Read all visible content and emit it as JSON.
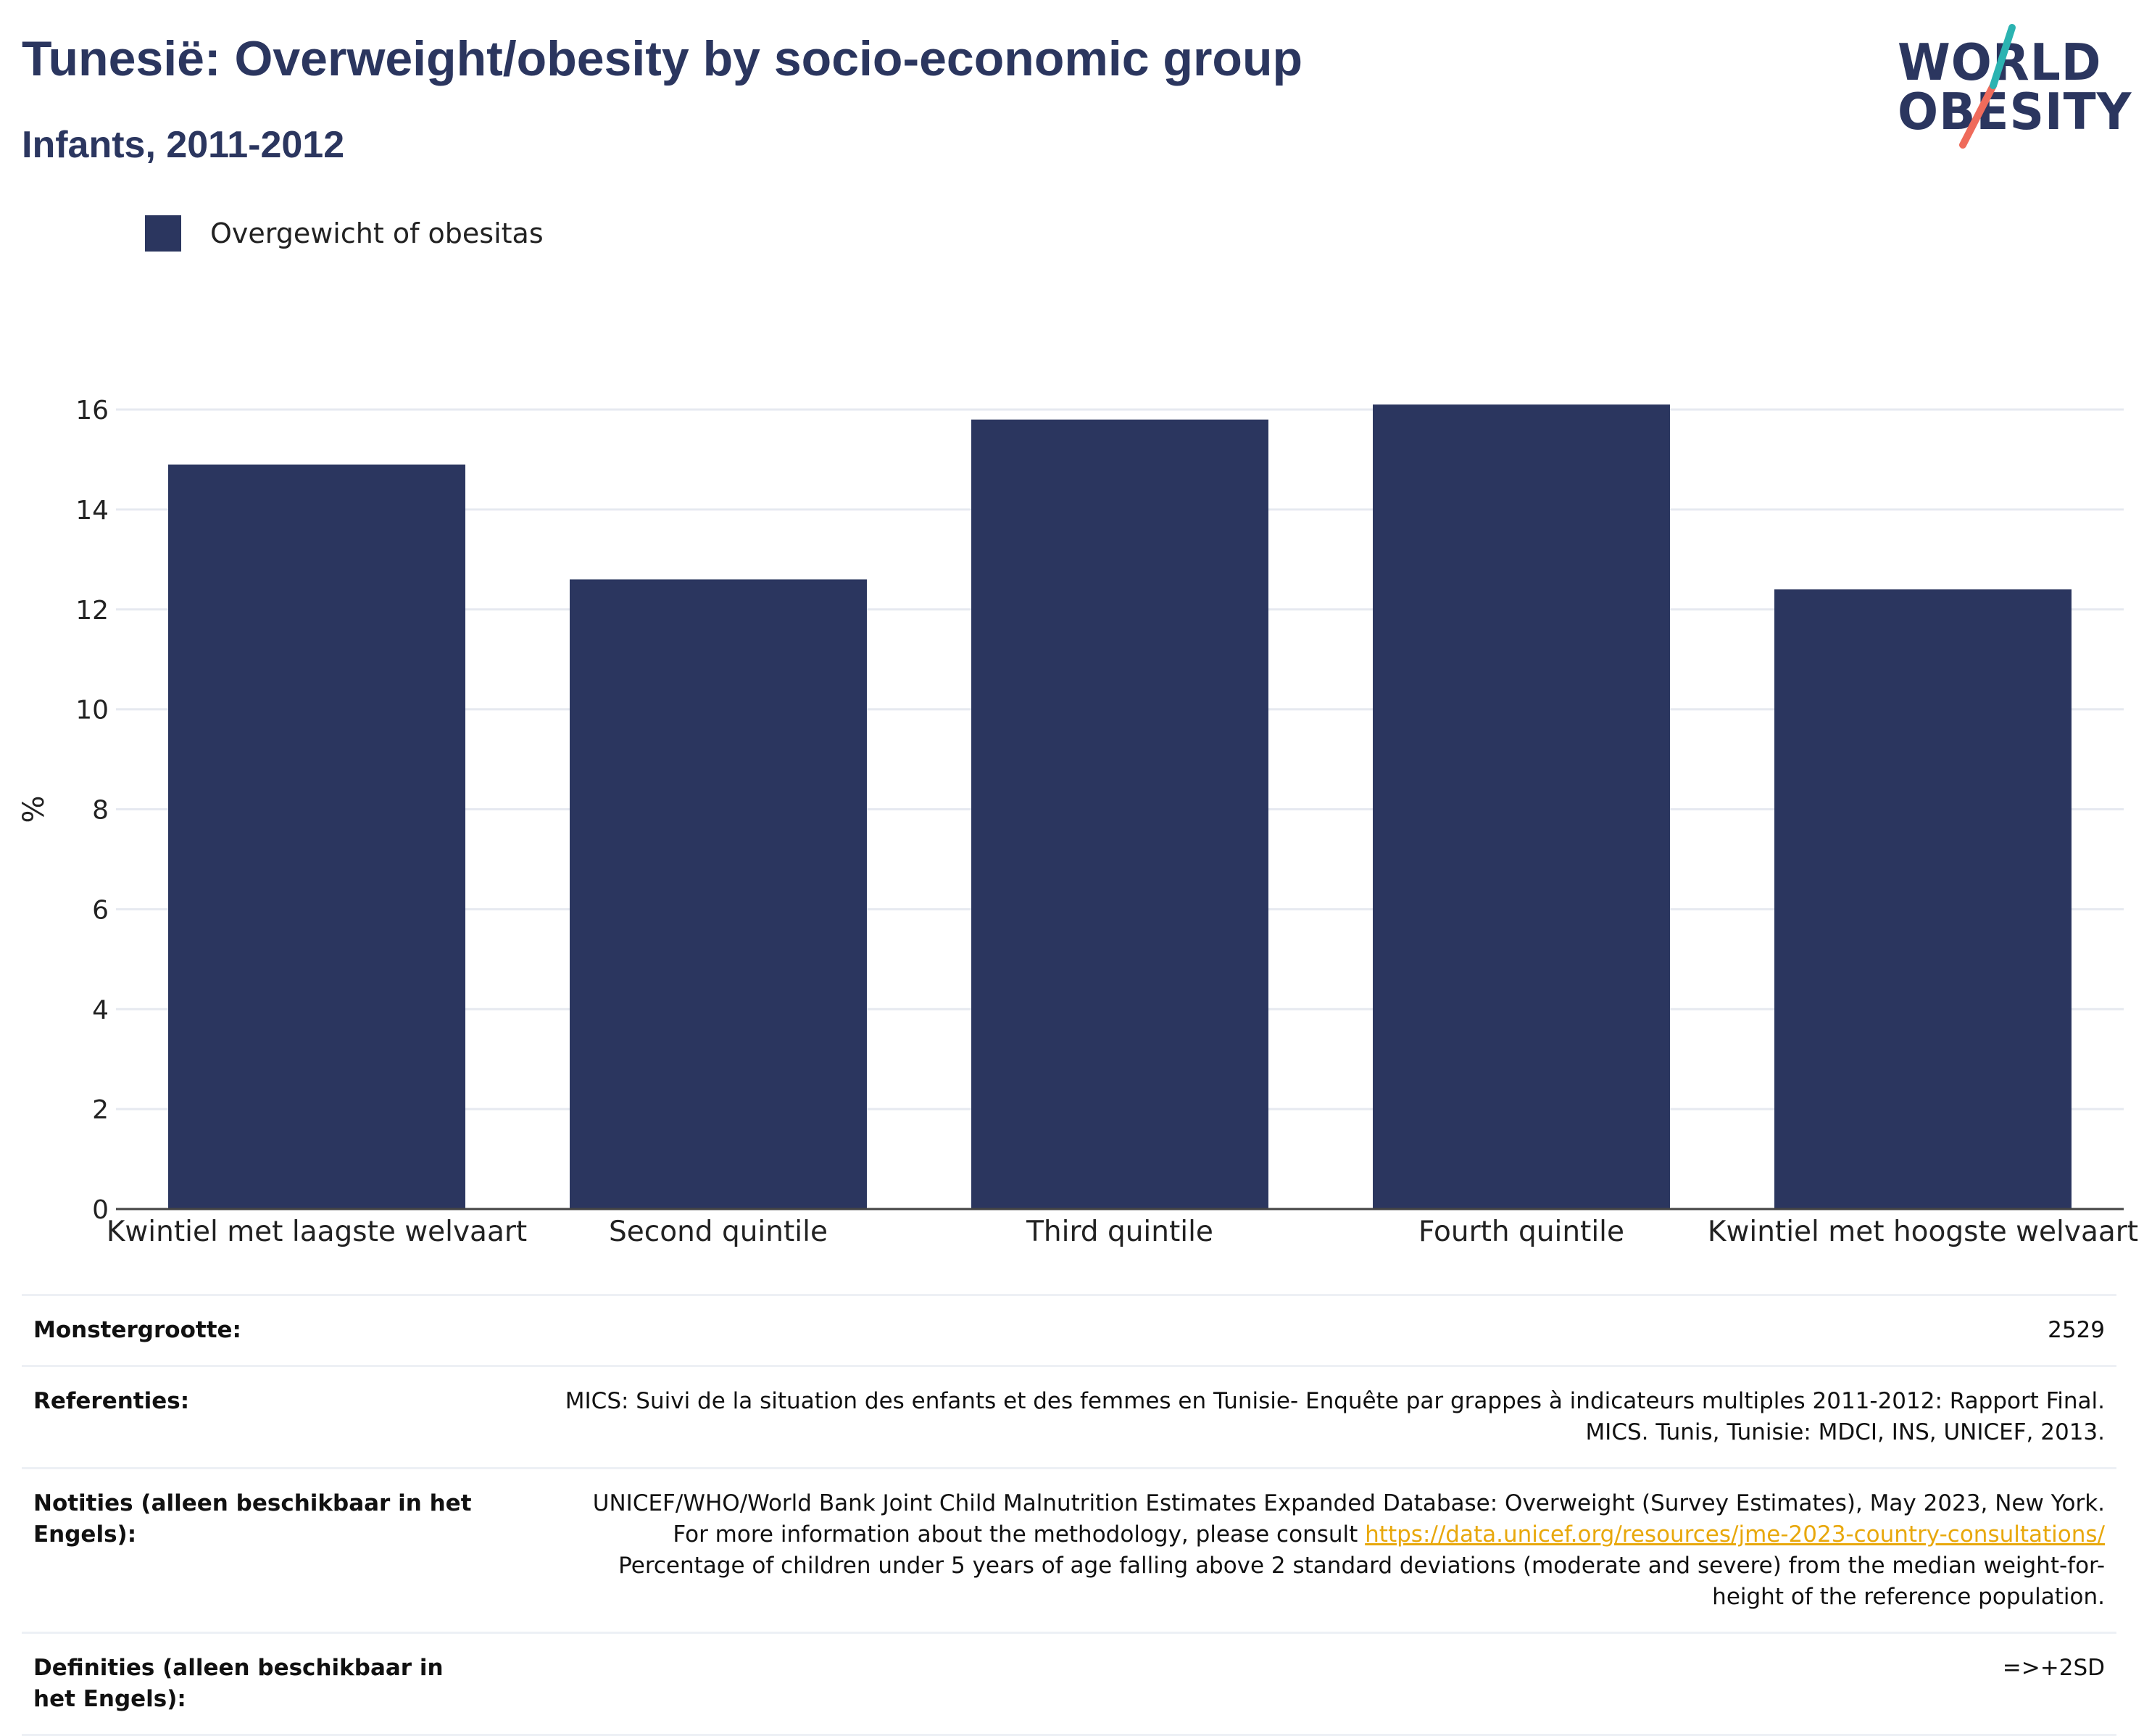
{
  "header": {
    "title": "Tunesië: Overweight/obesity by socio-economic group",
    "subtitle": "Infants, 2011-2012"
  },
  "logo": {
    "line1": "WORLD",
    "line2": "OBESITY"
  },
  "colors": {
    "bar": "#2b365f",
    "title": "#2b365f",
    "grid": "#e6e9f0",
    "link": "#e8a80c",
    "logo_teal": "#2bb3b1",
    "logo_coral": "#ef6b5b"
  },
  "legend": {
    "label": "Overgewicht of obesitas"
  },
  "chart_data": {
    "type": "bar",
    "categories": [
      "Kwintiel met laagste welvaart",
      "Second quintile",
      "Third quintile",
      "Fourth quintile",
      "Kwintiel met hoogste welvaart"
    ],
    "series": [
      {
        "name": "Overgewicht of obesitas",
        "values": [
          14.9,
          12.6,
          15.8,
          16.1,
          12.4
        ]
      }
    ],
    "ylabel": "%",
    "ylim": [
      0,
      16
    ],
    "yticks": [
      0,
      2,
      4,
      6,
      8,
      10,
      12,
      14,
      16
    ],
    "grid": true,
    "legend_position": "top-left"
  },
  "info": {
    "sample_size": {
      "label": "Monstergrootte:",
      "value": "2529"
    },
    "references": {
      "label": "Referenties:",
      "value": "MICS: Suivi de la situation des enfants et des femmes en Tunisie- Enquête par grappes à indicateurs multiples 2011-2012: Rapport Final. MICS. Tunis, Tunisie: MDCI, INS, UNICEF, 2013."
    },
    "notes": {
      "label": "Notities (alleen beschikbaar in het Engels):",
      "text_before": "UNICEF/WHO/World Bank Joint Child Malnutrition Estimates Expanded Database: Overweight (Survey Estimates), May 2023, New York. For more information about the methodology, please consult",
      "link": "https://data.unicef.org/resources/jme-2023-country-consultations/",
      "text_after": "Percentage of children under 5 years of age falling above 2 standard deviations (moderate and severe) from the median weight-for-height of the reference population."
    },
    "definitions": {
      "label": "Definities (alleen beschikbaar in het Engels):",
      "value": "=>+2SD"
    }
  }
}
